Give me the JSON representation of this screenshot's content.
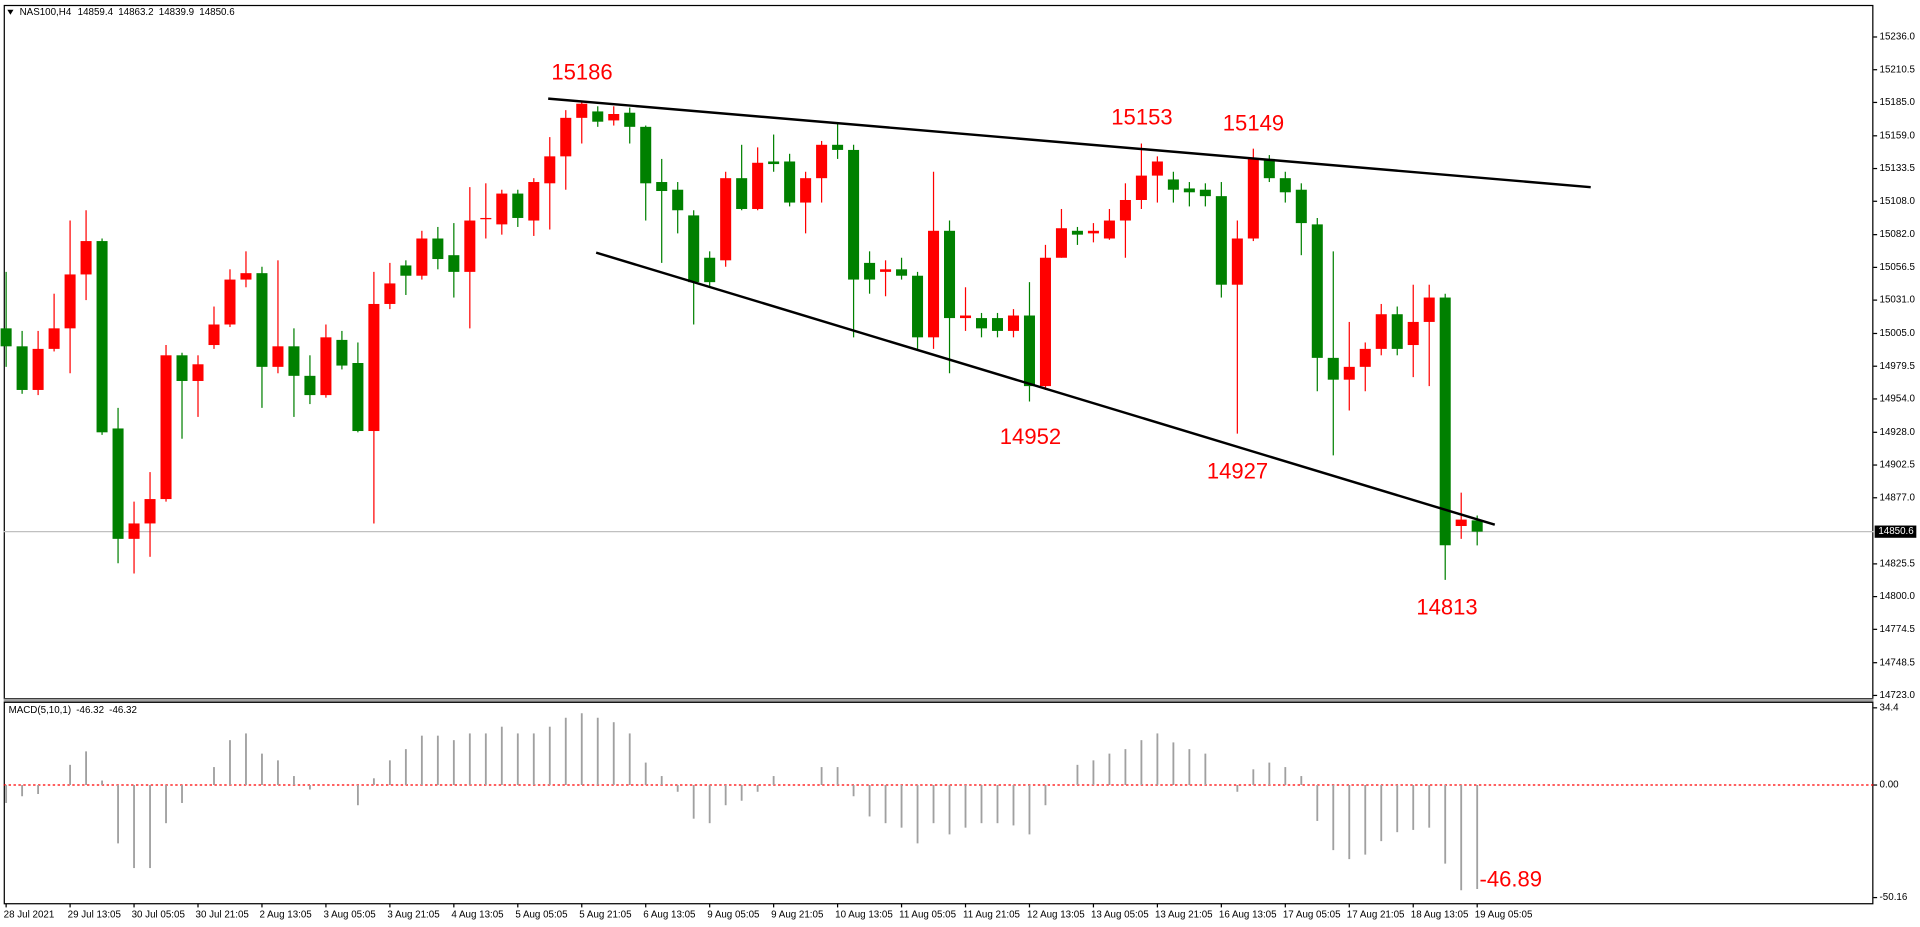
{
  "chart_data": {
    "type": "candlestick",
    "symbol": "NAS100,H4",
    "categories": [
      "28 Jul 2021",
      null,
      null,
      null,
      "29 Jul 13:05",
      null,
      null,
      null,
      "30 Jul 05:05",
      null,
      null,
      null,
      "30 Jul 21:05",
      null,
      null,
      null,
      "2 Aug 13:05",
      null,
      null,
      null,
      "3 Aug 05:05",
      null,
      null,
      null,
      "3 Aug 21:05",
      null,
      null,
      null,
      "4 Aug 13:05",
      null,
      null,
      null,
      "5 Aug 05:05",
      null,
      null,
      null,
      "5 Aug 21:05",
      null,
      null,
      null,
      "6 Aug 13:05",
      null,
      null,
      null,
      "9 Aug 05:05",
      null,
      null,
      null,
      "9 Aug 21:05",
      null,
      null,
      null,
      "10 Aug 13:05",
      null,
      null,
      null,
      "11 Aug 05:05",
      null,
      null,
      null,
      "11 Aug 21:05",
      null,
      null,
      null,
      "12 Aug 13:05",
      null,
      null,
      null,
      "13 Aug 05:05",
      null,
      null,
      null,
      "13 Aug 21:05",
      null,
      null,
      null,
      "16 Aug 13:05",
      null,
      null,
      null,
      "17 Aug 05:05",
      null,
      null,
      null,
      "17 Aug 21:05",
      null,
      null,
      null,
      "18 Aug 13:05",
      null,
      null,
      null,
      "19 Aug 05:05"
    ],
    "open": [
      15009,
      14995,
      14961,
      14993,
      15009,
      15051,
      15077,
      14931,
      14845,
      14857,
      14876,
      14988,
      14968,
      14996,
      15012,
      15047,
      15052,
      14979,
      14995,
      14972,
      14957,
      15000,
      14982,
      14929,
      15028,
      15058,
      15050,
      15079,
      15066,
      15053,
      15094,
      15090,
      15114,
      15093,
      15122,
      15143,
      15173,
      15178,
      15171,
      15177,
      15166,
      15123,
      15117,
      15097,
      15064,
      15062,
      15126,
      15102,
      15139,
      15139,
      15107,
      15126,
      15152,
      15148,
      15060,
      15053,
      15055,
      15050,
      15002,
      15085,
      15017,
      15017,
      15017,
      15007,
      15019,
      14964,
      15064,
      15085,
      15083,
      15079,
      15093,
      15109,
      15128,
      15125,
      15118,
      15117,
      15112,
      15043,
      15079,
      15141,
      15126,
      15117,
      15090,
      14986,
      14969,
      14979,
      14993,
      15020,
      14996,
      15014,
      15033,
      14855,
      14859.4
    ],
    "high": [
      15053,
      15007,
      15007,
      15036,
      15093,
      15101,
      15079,
      14947,
      14874,
      14897,
      14996,
      14990,
      14988,
      15026,
      15055,
      15069,
      15057,
      15062,
      15009,
      14988,
      15012,
      15007,
      14998,
      15053,
      15060,
      15062,
      15085,
      15088,
      15091,
      15119,
      15122,
      15117,
      15117,
      15126,
      15158,
      15179,
      15186,
      15182,
      15182,
      15181,
      15167,
      15141,
      15123,
      15101,
      15069,
      15131,
      15152,
      15150,
      15160,
      15145,
      15131,
      15155,
      15169,
      15152,
      15069,
      15062,
      15064,
      15053,
      15131,
      15093,
      15041,
      15021,
      15021,
      15024,
      15045,
      15074,
      15102,
      15088,
      15091,
      15102,
      15122,
      15153,
      15143,
      15131,
      15123,
      15122,
      15123,
      15093,
      15149,
      15144,
      15131,
      15122,
      15095,
      15069,
      15014,
      14998,
      15028,
      15026,
      15043,
      15043,
      15036,
      14881,
      14863.2
    ],
    "low": [
      14979,
      14958,
      14957,
      14991,
      14974,
      15031,
      14926,
      14826,
      14818,
      14831,
      14874,
      14923,
      14940,
      14993,
      15010,
      15041,
      14947,
      14974,
      14940,
      14950,
      14955,
      14977,
      14928,
      14857,
      15024,
      15035,
      15047,
      15055,
      15033,
      15009,
      15079,
      15082,
      15088,
      15081,
      15086,
      15117,
      15153,
      15166,
      15167,
      15153,
      15093,
      15060,
      15083,
      15012,
      15041,
      15057,
      15101,
      15101,
      15131,
      15104,
      15083,
      15107,
      15141,
      15002,
      15036,
      15034,
      15047,
      14993,
      14993,
      14974,
      15007,
      15002,
      15002,
      15002,
      14952,
      14961,
      15064,
      15074,
      15076,
      15078,
      15064,
      15102,
      15107,
      15107,
      15104,
      15104,
      15033,
      14927,
      15077,
      15123,
      15107,
      15066,
      14960,
      14910,
      14945,
      14960,
      14988,
      14988,
      14971,
      14964,
      14813,
      14845,
      14839.9
    ],
    "close": [
      14995,
      14961,
      14993,
      15009,
      15051,
      15077,
      14928,
      14845,
      14857,
      14876,
      14988,
      14968,
      14981,
      15012,
      15047,
      15052,
      14979,
      14995,
      14972,
      14957,
      15002,
      14980,
      14929,
      15028,
      15044,
      15050,
      15079,
      15063,
      15053,
      15093,
      15095,
      15114,
      15095,
      15123,
      15143,
      15173,
      15184,
      15170,
      15176,
      15166,
      15122,
      15116,
      15101,
      15045,
      15045,
      15126,
      15102,
      15138,
      15137,
      15107,
      15126,
      15152,
      15148,
      15047,
      15047,
      15055,
      15050,
      15002,
      15085,
      15017,
      15019,
      15009,
      15007,
      15019,
      14964,
      15064,
      15087,
      15082,
      15085,
      15093,
      15109,
      15128,
      15139,
      15117,
      15115,
      15112,
      15043,
      15079,
      15141,
      15126,
      15115,
      15091,
      14986,
      14969,
      14979,
      14993,
      15020,
      14993,
      15014,
      15033,
      14840,
      14860,
      14850.6
    ],
    "up_color": "#ff0000",
    "down_color": "#008000",
    "ylim": [
      14721,
      15261
    ],
    "yticks": [
      {
        "value": 15236,
        "label": "15236.0"
      },
      15210.5,
      {
        "value": 15185,
        "label": "15185.0"
      },
      {
        "value": 15159,
        "label": "15159.0"
      },
      15133.5,
      {
        "value": 15108,
        "label": "15108.0"
      },
      {
        "value": 15082,
        "label": "15082.0"
      },
      15056.5,
      {
        "value": 15031,
        "label": "15031.0"
      },
      {
        "value": 15005,
        "label": "15005.0"
      },
      14979.5,
      {
        "value": 14954,
        "label": "14954.0"
      },
      {
        "value": 14928,
        "label": "14928.0"
      },
      14902.5,
      {
        "value": 14877,
        "label": "14877.0"
      },
      14825.5,
      {
        "value": 14800,
        "label": "14800.0"
      },
      14774.5,
      14748.5,
      {
        "value": 14723,
        "label": "14723.0"
      }
    ],
    "trendlines": [
      {
        "x": [
          33.9,
          99.1
        ],
        "y": [
          15188,
          15119
        ],
        "color": "#000000"
      },
      {
        "x": [
          36.9,
          93.1
        ],
        "y": [
          15068,
          14856
        ],
        "color": "#000000"
      }
    ],
    "annotations": [
      "15186",
      "15153",
      "15149",
      "14952",
      "14927",
      "14813",
      "-46.89"
    ],
    "annotation_color": "#ff0000",
    "macd": {
      "title": "MACD(5,10,1)",
      "values": [
        -8,
        -5,
        -4,
        0,
        9,
        15,
        2,
        -26,
        -37,
        -37,
        -17,
        -8,
        0,
        8,
        20,
        23,
        14,
        11,
        4,
        -2,
        0,
        0,
        -9,
        3,
        11,
        16,
        22,
        22,
        20,
        23,
        23,
        26,
        23,
        23,
        26,
        30,
        32,
        30,
        28,
        23,
        10,
        4,
        -3,
        -15,
        -17,
        -9,
        -7,
        -3,
        4,
        0,
        0,
        8,
        8,
        -5,
        -14,
        -17,
        -19,
        -26,
        -17,
        -22,
        -19,
        -17,
        -17,
        -18,
        -22,
        -9,
        0,
        9,
        11,
        14,
        16,
        20,
        23,
        19,
        16,
        14,
        0,
        -3,
        7,
        10,
        8,
        4,
        -16,
        -29,
        -33,
        -31,
        -25,
        -21,
        -20,
        -19,
        -35,
        -46.89,
        -46.32
      ],
      "color": "#a0a0a0",
      "zero_line_color": "#ff0000",
      "ylim": [
        -52.9,
        36.6
      ],
      "yticks": [
        34.4,
        {
          "value": 0,
          "label": "0.00"
        },
        -50.16
      ]
    }
  }
}
